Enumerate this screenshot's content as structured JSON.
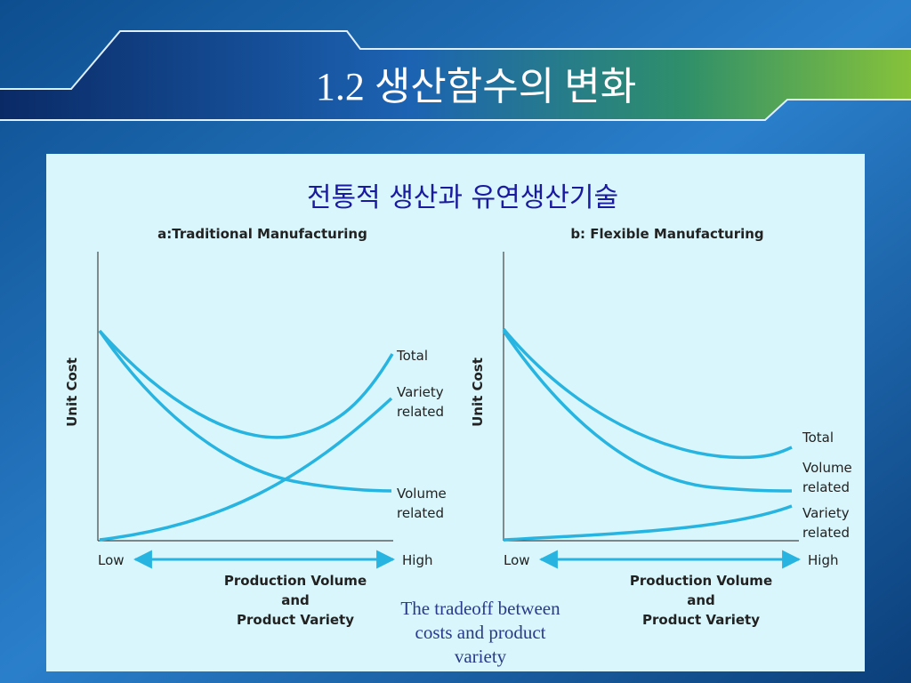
{
  "header": {
    "title": "1.2 생산함수의 변화"
  },
  "subtitle": "전통적 생산과 유연생산기술",
  "panels": [
    {
      "title": "a:Traditional Manufacturing",
      "y_label": "Unit Cost",
      "curve_labels": [
        [
          "Total"
        ],
        [
          "Variety",
          "related"
        ],
        [
          "Volume",
          "related"
        ]
      ],
      "low": "Low",
      "high": "High",
      "x_label": [
        "Production Volume",
        "and",
        "Product Variety"
      ]
    },
    {
      "title": "b: Flexible Manufacturing",
      "y_label": "Unit Cost",
      "curve_labels": [
        [
          "Total"
        ],
        [
          "Volume",
          "related"
        ],
        [
          "Variety",
          "related"
        ]
      ],
      "low": "Low",
      "high": "High",
      "x_label": [
        "Production Volume",
        "and",
        "Product Variety"
      ]
    }
  ],
  "caption": [
    "The tradeoff between",
    "costs and product",
    "variety"
  ]
}
